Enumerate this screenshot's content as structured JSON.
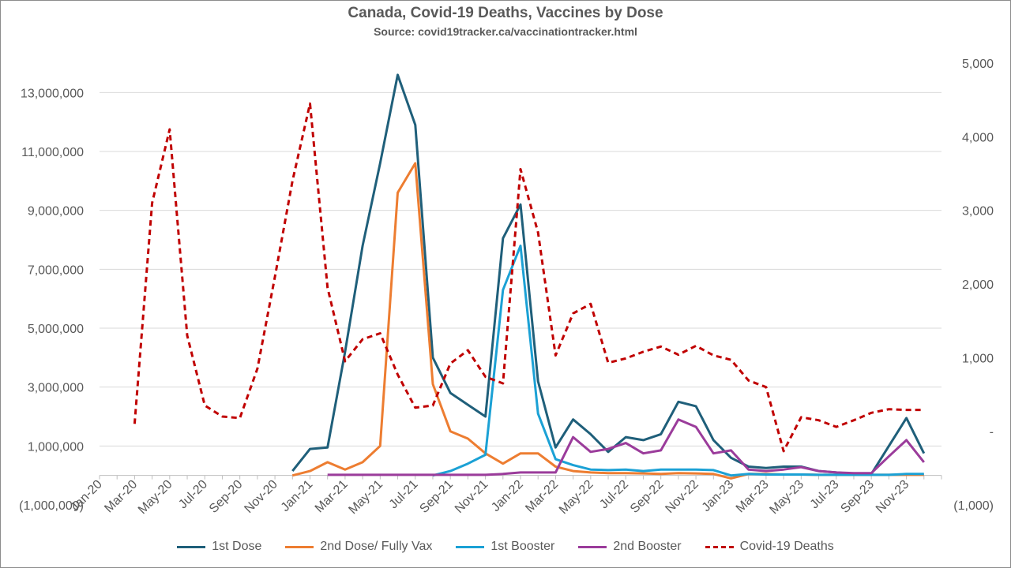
{
  "chart_data": {
    "type": "line",
    "title": "Canada, Covid-19 Deaths, Vaccines by Dose",
    "subtitle": "Source: covid19tracker.ca/vaccinationtracker.html",
    "x": [
      "Jan-20",
      "Feb-20",
      "Mar-20",
      "Apr-20",
      "May-20",
      "Jun-20",
      "Jul-20",
      "Aug-20",
      "Sep-20",
      "Oct-20",
      "Nov-20",
      "Dec-20",
      "Jan-21",
      "Feb-21",
      "Mar-21",
      "Apr-21",
      "May-21",
      "Jun-21",
      "Jul-21",
      "Aug-21",
      "Sep-21",
      "Oct-21",
      "Nov-21",
      "Dec-21",
      "Jan-22",
      "Feb-22",
      "Mar-22",
      "Apr-22",
      "May-22",
      "Jun-22",
      "Jul-22",
      "Aug-22",
      "Sep-22",
      "Oct-22",
      "Nov-22",
      "Dec-22",
      "Jan-23",
      "Feb-23",
      "Mar-23",
      "Apr-23",
      "May-23",
      "Jun-23",
      "Jul-23",
      "Aug-23",
      "Sep-23",
      "Oct-23",
      "Nov-23",
      "Dec-23"
    ],
    "x_tick_labels": [
      "Jan-20",
      "Mar-20",
      "May-20",
      "Jul-20",
      "Sep-20",
      "Nov-20",
      "Jan-21",
      "Mar-21",
      "May-21",
      "Jul-21",
      "Sep-21",
      "Nov-21",
      "Jan-22",
      "Mar-22",
      "May-22",
      "Jul-22",
      "Sep-22",
      "Nov-22",
      "Jan-23",
      "Mar-23",
      "May-23",
      "Jul-23",
      "Sep-23",
      "Nov-23"
    ],
    "y_left": {
      "min": -1000000,
      "max": 14000000,
      "ticks": [
        -1000000,
        1000000,
        3000000,
        5000000,
        7000000,
        9000000,
        11000000,
        13000000
      ],
      "tick_labels": [
        "(1,000,000)",
        "1,000,000",
        "3,000,000",
        "5,000,000",
        "7,000,000",
        "9,000,000",
        "11,000,000",
        "13,000,000"
      ]
    },
    "y_right": {
      "min": -1000,
      "max": 5000,
      "ticks": [
        -1000,
        0,
        1000,
        2000,
        3000,
        4000,
        5000
      ],
      "tick_labels": [
        "(1,000)",
        "-",
        "1,000",
        "2,000",
        "3,000",
        "4,000",
        "5,000"
      ]
    },
    "grid": true,
    "legend_position": "bottom",
    "series": [
      {
        "name": "1st Dose",
        "axis": "left",
        "color": "#1f5f7a",
        "dash": false,
        "values": [
          null,
          null,
          null,
          null,
          null,
          null,
          null,
          null,
          null,
          null,
          null,
          150000.0,
          900000.0,
          950000.0,
          4200000.0,
          7800000.0,
          10600000.0,
          13600000.0,
          11900000.0,
          4000000.0,
          2800000.0,
          2400000.0,
          2000000.0,
          8050000.0,
          9200000.0,
          3200000.0,
          950000.0,
          1900000.0,
          1400000.0,
          800000.0,
          1300000.0,
          1200000.0,
          1400000.0,
          2500000.0,
          2350000.0,
          1200000.0,
          600000.0,
          300000.0,
          250000.0,
          300000.0,
          300000.0,
          150000.0,
          100000.0,
          50000.0,
          50000.0,
          1000000.0,
          1950000.0,
          750000.0
        ]
      },
      {
        "name": "2nd Dose/ Fully Vax",
        "axis": "left",
        "color": "#ed7d31",
        "dash": false,
        "values": [
          null,
          null,
          null,
          null,
          null,
          null,
          null,
          null,
          null,
          null,
          null,
          0.0,
          150000.0,
          450000.0,
          200000.0,
          450000.0,
          1000000.0,
          9600000.0,
          10600000.0,
          3100000.0,
          1500000.0,
          1250000.0,
          750000.0,
          400000.0,
          750000.0,
          750000.0,
          300000.0,
          150000.0,
          100000.0,
          80000.0,
          80000.0,
          70000.0,
          50000.0,
          80000.0,
          70000.0,
          50000.0,
          -100000.0,
          50000.0,
          50000.0,
          30000.0,
          30000.0,
          20000.0,
          20000.0,
          20000.0,
          20000.0,
          20000.0,
          20000.0,
          20000.0
        ]
      },
      {
        "name": "1st Booster",
        "axis": "left",
        "color": "#1ba1d5",
        "dash": false,
        "values": [
          null,
          null,
          null,
          null,
          null,
          null,
          null,
          null,
          null,
          null,
          null,
          null,
          null,
          null,
          null,
          null,
          null,
          null,
          null,
          0.0,
          150000.0,
          400000.0,
          700000.0,
          6300000.0,
          7800000.0,
          2100000.0,
          550000.0,
          350000.0,
          200000.0,
          180000.0,
          200000.0,
          150000.0,
          200000.0,
          200000.0,
          200000.0,
          180000.0,
          0.0,
          50000.0,
          30000.0,
          30000.0,
          30000.0,
          20000.0,
          20000.0,
          20000.0,
          20000.0,
          20000.0,
          50000.0,
          50000.0
        ]
      },
      {
        "name": "2nd Booster",
        "axis": "left",
        "color": "#9b3c9b",
        "dash": false,
        "values": [
          null,
          null,
          null,
          null,
          null,
          null,
          null,
          null,
          null,
          null,
          null,
          null,
          null,
          20000.0,
          20000.0,
          20000.0,
          20000.0,
          20000.0,
          20000.0,
          20000.0,
          20000.0,
          20000.0,
          20000.0,
          50000.0,
          100000.0,
          100000.0,
          100000.0,
          1300000.0,
          800000.0,
          900000.0,
          1100000.0,
          750000.0,
          850000.0,
          1900000.0,
          1650000.0,
          750000.0,
          850000.0,
          200000.0,
          150000.0,
          200000.0,
          280000.0,
          150000.0,
          100000.0,
          80000.0,
          80000.0,
          650000.0,
          1200000.0,
          450000.0
        ]
      },
      {
        "name": "Covid-19 Deaths",
        "axis": "right",
        "color": "#c00000",
        "dash": true,
        "values": [
          null,
          null,
          100,
          3100,
          4100,
          1300,
          350,
          200,
          180,
          850,
          2100,
          3400,
          4450,
          1950,
          950,
          1250,
          1330,
          770,
          320,
          350,
          920,
          1100,
          740,
          650,
          3560,
          2700,
          1030,
          1600,
          1730,
          930,
          990,
          1080,
          1150,
          1040,
          1160,
          1030,
          970,
          690,
          600,
          -270,
          190,
          150,
          60,
          150,
          250,
          300,
          290,
          290
        ]
      }
    ]
  }
}
